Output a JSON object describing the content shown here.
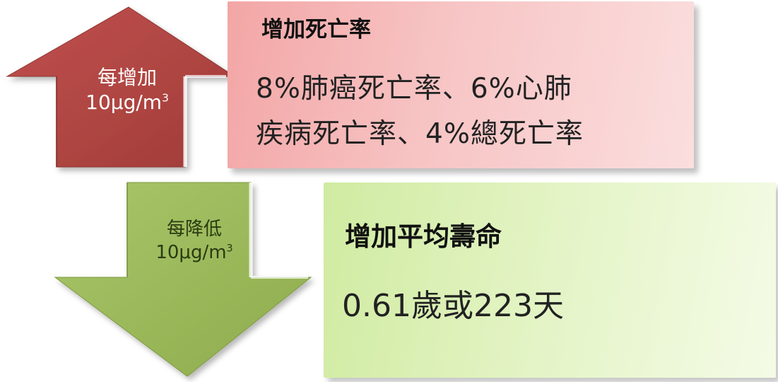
{
  "colors": {
    "up_arrow": "#b24a47",
    "down_arrow": "#9cbb59",
    "top_box": "#f5b8b8",
    "bottom_box": "#dcf0b6"
  },
  "up_arrow": {
    "line1": "每增加",
    "line2_base": "10μg/m",
    "line2_sup": "3"
  },
  "down_arrow": {
    "line1": "每降低",
    "line2_base": "10μg/m",
    "line2_sup": "3"
  },
  "top_box": {
    "title": "增加死亡率",
    "line1": "8%肺癌死亡率、6%心肺",
    "line2": "疾病死亡率、4%總死亡率"
  },
  "bottom_box": {
    "title": "增加平均壽命",
    "body": "0.61歲或223天"
  }
}
